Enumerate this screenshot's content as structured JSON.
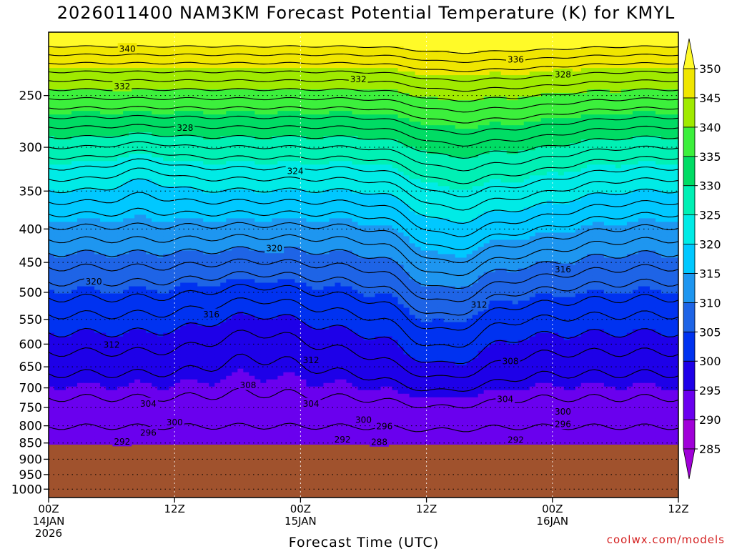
{
  "chart_data": {
    "type": "time-height contour",
    "title": "2026011400 NAM3KM Forecast Potential Temperature (K) for KMYL",
    "xlabel": "Forecast Time (UTC)",
    "ylabel": "",
    "x_range_hours": [
      0,
      60
    ],
    "y_range_hPa": [
      200,
      1030
    ],
    "y_scale": "log-pressure",
    "y_ticks": [
      250,
      300,
      350,
      400,
      450,
      500,
      550,
      600,
      650,
      700,
      750,
      800,
      850,
      900,
      950,
      1000
    ],
    "y_tick_labels": [
      "250",
      "300",
      "350",
      "400",
      "450",
      "500",
      "550",
      "600",
      "650",
      "700",
      "750",
      "800",
      "850",
      "900",
      "950",
      "1000"
    ],
    "x_ticks": [
      {
        "hour": 0,
        "line1": "00Z",
        "line2": "14JAN",
        "line3": "2026"
      },
      {
        "hour": 12,
        "line1": "12Z",
        "line2": "",
        "line3": ""
      },
      {
        "hour": 24,
        "line1": "00Z",
        "line2": "15JAN",
        "line3": ""
      },
      {
        "hour": 36,
        "line1": "12Z",
        "line2": "",
        "line3": ""
      },
      {
        "hour": 48,
        "line1": "00Z",
        "line2": "16JAN",
        "line3": ""
      },
      {
        "hour": 60,
        "line1": "12Z",
        "line2": "",
        "line3": ""
      }
    ],
    "ground_pressure_hPa": 855,
    "ground_color": "#a0522d",
    "colorbar": {
      "levels": [
        285,
        290,
        295,
        300,
        305,
        310,
        315,
        320,
        325,
        330,
        335,
        340,
        345,
        350
      ],
      "labels": [
        "285",
        "290",
        "295",
        "300",
        "305",
        "310",
        "315",
        "320",
        "325",
        "330",
        "335",
        "340",
        "345",
        "350"
      ],
      "colors": [
        "#a000d8",
        "#6a00ee",
        "#1e00e8",
        "#0032f0",
        "#1e64e6",
        "#1e96f0",
        "#00c8ff",
        "#00ebe6",
        "#00f0b4",
        "#00dc64",
        "#3cf03c",
        "#a0ea00",
        "#f0e600",
        "#fffa28"
      ]
    },
    "contour_interval_K": 2,
    "contour_labels": [
      {
        "value": 340,
        "hour": 7.5,
        "p": 212
      },
      {
        "value": 336,
        "hour": 44.5,
        "p": 220
      },
      {
        "value": 332,
        "hour": 7,
        "p": 242
      },
      {
        "value": 332,
        "hour": 29.5,
        "p": 236
      },
      {
        "value": 328,
        "hour": 49,
        "p": 232
      },
      {
        "value": 328,
        "hour": 13,
        "p": 280
      },
      {
        "value": 324,
        "hour": 23.5,
        "p": 326
      },
      {
        "value": 320,
        "hour": 21.5,
        "p": 428
      },
      {
        "value": 320,
        "hour": 4.3,
        "p": 481
      },
      {
        "value": 316,
        "hour": 49,
        "p": 461
      },
      {
        "value": 316,
        "hour": 15.5,
        "p": 540
      },
      {
        "value": 312,
        "hour": 41,
        "p": 522
      },
      {
        "value": 312,
        "hour": 6,
        "p": 601
      },
      {
        "value": 312,
        "hour": 25,
        "p": 634
      },
      {
        "value": 308,
        "hour": 44,
        "p": 637
      },
      {
        "value": 308,
        "hour": 19,
        "p": 693
      },
      {
        "value": 304,
        "hour": 9.5,
        "p": 740
      },
      {
        "value": 304,
        "hour": 25,
        "p": 740
      },
      {
        "value": 304,
        "hour": 43.5,
        "p": 728
      },
      {
        "value": 300,
        "hour": 12,
        "p": 790
      },
      {
        "value": 300,
        "hour": 30,
        "p": 783
      },
      {
        "value": 300,
        "hour": 49,
        "p": 760
      },
      {
        "value": 296,
        "hour": 9.5,
        "p": 819
      },
      {
        "value": 296,
        "hour": 32,
        "p": 801
      },
      {
        "value": 296,
        "hour": 49,
        "p": 795
      },
      {
        "value": 292,
        "hour": 7,
        "p": 845
      },
      {
        "value": 292,
        "hour": 28,
        "p": 839
      },
      {
        "value": 292,
        "hour": 44.5,
        "p": 840
      },
      {
        "value": 288,
        "hour": 31.5,
        "p": 846
      }
    ]
  },
  "credit": "coolwx.com/models"
}
